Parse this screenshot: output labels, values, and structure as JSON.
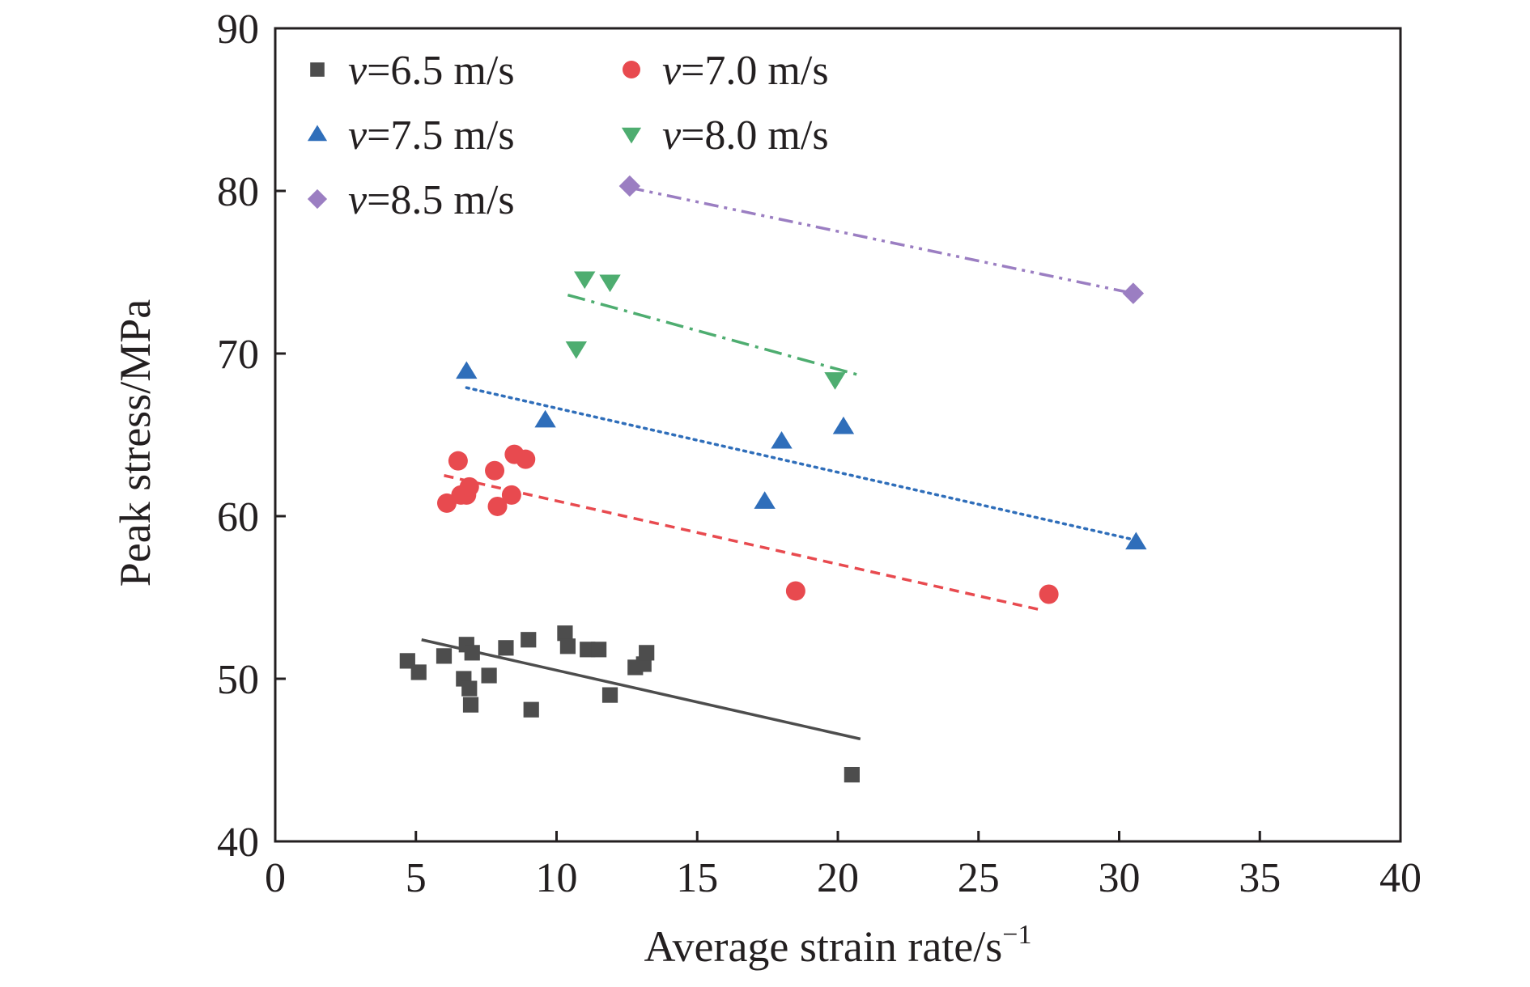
{
  "chart_data": {
    "type": "scatter",
    "title": "",
    "xlabel": "Average strain rate/s",
    "xlabel_sup": "−1",
    "ylabel": "Peak stress/MPa",
    "xlim": [
      0,
      40
    ],
    "ylim": [
      40,
      90
    ],
    "x_ticks": [
      "0",
      "5",
      "10",
      "15",
      "20",
      "25",
      "30",
      "35",
      "40"
    ],
    "y_ticks": [
      "40",
      "50",
      "60",
      "70",
      "80",
      "90"
    ],
    "grid": false,
    "legend_position": "top-left",
    "series": [
      {
        "name_var": "v",
        "name_rest": "=6.5 m/s",
        "marker": "square",
        "color": "#4d4d4d",
        "line_style": "solid",
        "points": [
          [
            4.7,
            51.1
          ],
          [
            5.1,
            50.4
          ],
          [
            6.0,
            51.4
          ],
          [
            6.7,
            50.0
          ],
          [
            6.8,
            52.1
          ],
          [
            6.9,
            49.4
          ],
          [
            6.95,
            48.4
          ],
          [
            7.0,
            51.6
          ],
          [
            7.6,
            50.2
          ],
          [
            8.2,
            51.9
          ],
          [
            9.0,
            52.4
          ],
          [
            9.1,
            48.1
          ],
          [
            10.3,
            52.8
          ],
          [
            10.4,
            52.0
          ],
          [
            11.1,
            51.8
          ],
          [
            11.5,
            51.8
          ],
          [
            11.9,
            49.0
          ],
          [
            12.8,
            50.7
          ],
          [
            13.1,
            50.9
          ],
          [
            13.2,
            51.6
          ],
          [
            20.5,
            44.1
          ]
        ],
        "fit": [
          [
            5.2,
            52.4
          ],
          [
            20.8,
            46.3
          ]
        ]
      },
      {
        "name_var": "v",
        "name_rest": "=7.0 m/s",
        "marker": "circle",
        "color": "#e84a4f",
        "line_style": "dash",
        "points": [
          [
            6.1,
            60.8
          ],
          [
            6.5,
            63.4
          ],
          [
            6.6,
            61.3
          ],
          [
            6.8,
            61.3
          ],
          [
            6.9,
            61.8
          ],
          [
            7.8,
            62.8
          ],
          [
            7.9,
            60.6
          ],
          [
            8.4,
            61.3
          ],
          [
            8.5,
            63.8
          ],
          [
            8.9,
            63.5
          ],
          [
            18.5,
            55.4
          ],
          [
            27.5,
            55.2
          ]
        ],
        "fit": [
          [
            6.0,
            62.5
          ],
          [
            27.3,
            54.2
          ]
        ]
      },
      {
        "name_var": "v",
        "name_rest": "=7.5 m/s",
        "marker": "triangle-up",
        "color": "#2f6eba",
        "line_style": "dot",
        "points": [
          [
            6.8,
            68.9
          ],
          [
            9.6,
            65.9
          ],
          [
            17.4,
            60.9
          ],
          [
            18.0,
            64.6
          ],
          [
            20.2,
            65.5
          ],
          [
            30.6,
            58.4
          ]
        ],
        "fit": [
          [
            6.8,
            67.9
          ],
          [
            30.4,
            58.6
          ]
        ]
      },
      {
        "name_var": "v",
        "name_rest": "=8.0 m/s",
        "marker": "triangle-down",
        "color": "#4ead70",
        "line_style": "dashdot",
        "points": [
          [
            10.7,
            70.3
          ],
          [
            11.0,
            74.6
          ],
          [
            11.9,
            74.4
          ],
          [
            19.9,
            68.4
          ]
        ],
        "fit": [
          [
            10.4,
            73.6
          ],
          [
            20.7,
            68.7
          ]
        ]
      },
      {
        "name_var": "v",
        "name_rest": "=8.5 m/s",
        "marker": "diamond",
        "color": "#9b7ec2",
        "line_style": "dashdotdot",
        "points": [
          [
            12.6,
            80.3
          ],
          [
            30.5,
            73.7
          ]
        ],
        "fit": [
          [
            12.6,
            80.2
          ],
          [
            30.5,
            73.7
          ]
        ]
      }
    ]
  }
}
